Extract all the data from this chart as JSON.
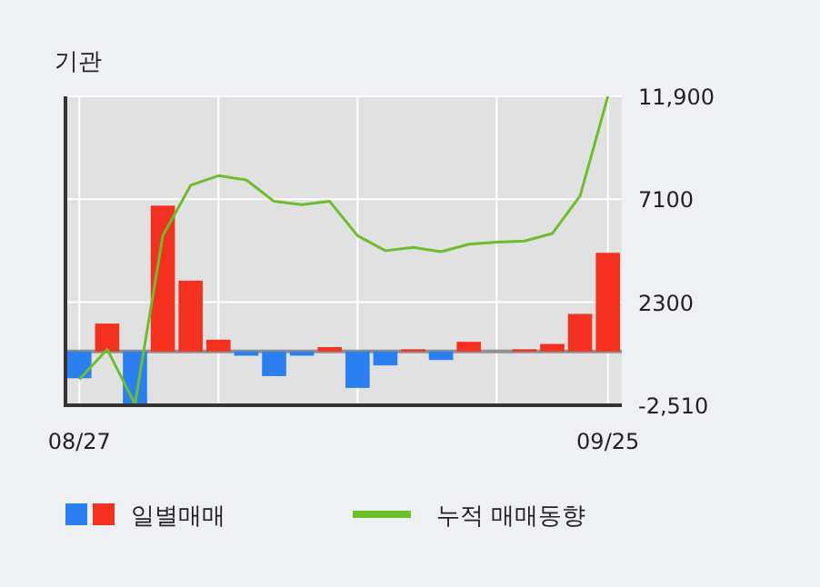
{
  "chart_data": {
    "type": "bar",
    "title": "기관",
    "categories": [
      "08/27",
      null,
      null,
      null,
      null,
      null,
      null,
      null,
      null,
      null,
      null,
      null,
      null,
      null,
      null,
      null,
      null,
      null,
      null,
      "09/25"
    ],
    "series": [
      {
        "name": "일별매매",
        "colors": [
          "#2a80f0",
          "#f5301e",
          "#2a80f0",
          "#f5301e",
          "#f5301e",
          "#f5301e",
          "#2a80f0",
          "#2a80f0",
          "#2a80f0",
          "#f5301e",
          "#2a80f0",
          "#2a80f0",
          "#f5301e",
          "#2a80f0",
          "#f5301e",
          "#f5301e",
          "#f5301e",
          "#f5301e",
          "#f5301e",
          "#f5301e"
        ],
        "values": [
          -1250,
          1300,
          -2500,
          6800,
          3300,
          550,
          -200,
          -1150,
          -200,
          200,
          -1700,
          -650,
          100,
          -400,
          450,
          0,
          100,
          350,
          1750,
          4600
        ]
      },
      {
        "name": "누적 매매동향",
        "type": "line",
        "color": "#6cbf2a",
        "values": [
          -1300,
          100,
          -2450,
          5400,
          7750,
          8200,
          8000,
          7000,
          6850,
          7000,
          5400,
          4700,
          4850,
          4650,
          5000,
          5100,
          5150,
          5500,
          7250,
          11900
        ]
      }
    ],
    "ylim": [
      -2510,
      11900
    ],
    "yticks": [
      {
        "value": 11900,
        "label": "11,900"
      },
      7100,
      2300,
      {
        "value": -2510,
        "label": "-2,510"
      }
    ],
    "grid": true,
    "legend": "bottom"
  }
}
